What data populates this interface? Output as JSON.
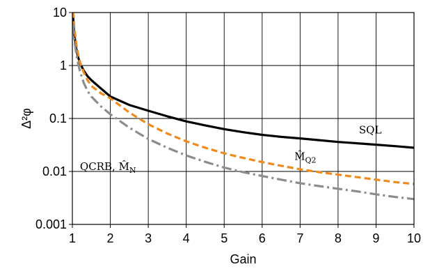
{
  "chart_data": {
    "type": "line",
    "title": "",
    "xlabel": "Gain",
    "ylabel": "Δ²φ",
    "xlim": [
      1,
      10
    ],
    "ylim": [
      0.001,
      10
    ],
    "yscale": "log",
    "grid": true,
    "x_ticks": [
      1,
      2,
      3,
      4,
      5,
      6,
      7,
      8,
      9,
      10
    ],
    "x_tick_labels": [
      "1",
      "2",
      "3",
      "4",
      "5",
      "6",
      "7",
      "8",
      "9",
      "10"
    ],
    "y_ticks": [
      0.001,
      0.01,
      0.1,
      1,
      10
    ],
    "y_tick_labels": [
      "0.001",
      "0.01",
      "0.1",
      "1",
      "10"
    ],
    "x": [
      1.02,
      1.05,
      1.1,
      1.15,
      1.2,
      1.3,
      1.4,
      1.5,
      1.75,
      2,
      2.5,
      3,
      3.5,
      4,
      4.5,
      5,
      5.5,
      6,
      6.5,
      7,
      7.5,
      8,
      8.5,
      9,
      9.5,
      10
    ],
    "series": [
      {
        "name": "SQL",
        "color": "#000000",
        "style": "solid",
        "values": [
          8.0,
          4.0,
          2.1,
          1.45,
          1.12,
          0.8,
          0.63,
          0.53,
          0.37,
          0.26,
          0.18,
          0.14,
          0.11,
          0.088,
          0.074,
          0.063,
          0.055,
          0.049,
          0.045,
          0.042,
          0.039,
          0.036,
          0.034,
          0.032,
          0.03,
          0.028
        ]
      },
      {
        "name": "M̂Q2",
        "color": "#f08a1c",
        "style": "dashed",
        "values": [
          10.5,
          5.4,
          2.6,
          1.65,
          1.17,
          0.74,
          0.53,
          0.41,
          0.3,
          0.24,
          0.13,
          0.078,
          0.052,
          0.037,
          0.028,
          0.022,
          0.018,
          0.015,
          0.0128,
          0.011,
          0.0097,
          0.0087,
          0.0078,
          0.007,
          0.0063,
          0.0058
        ]
      },
      {
        "name": "QCRB, M̂N",
        "color": "#8c8c8c",
        "style": "dashdot",
        "values": [
          6.0,
          3.2,
          1.7,
          1.1,
          0.78,
          0.47,
          0.33,
          0.26,
          0.17,
          0.12,
          0.067,
          0.041,
          0.028,
          0.02,
          0.0152,
          0.0118,
          0.0097,
          0.0082,
          0.007,
          0.006,
          0.0053,
          0.0047,
          0.0042,
          0.0037,
          0.0033,
          0.003
        ]
      }
    ],
    "annotations": [
      {
        "series": 0,
        "text": "SQL",
        "at_x": 8.55,
        "at_y": 0.052
      },
      {
        "series": 1,
        "text": "M̂",
        "sub": "Q2",
        "at_x": 6.85,
        "at_y": 0.0165
      },
      {
        "series": 2,
        "text": "QCRB, M̂",
        "sub": "N",
        "at_x": 1.2,
        "at_y": 0.0107
      }
    ]
  }
}
